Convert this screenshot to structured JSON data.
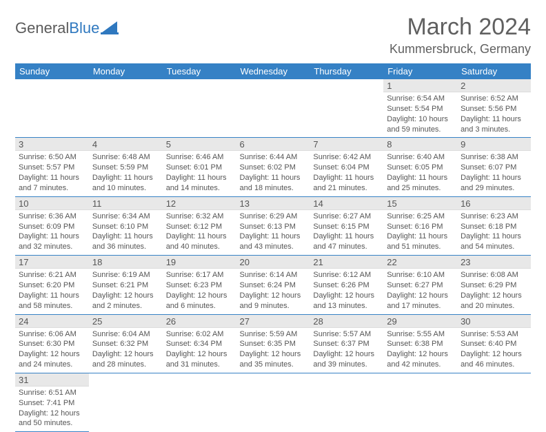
{
  "logo": {
    "word1": "General",
    "word2": "Blue"
  },
  "title": "March 2024",
  "location": "Kummersbruck, Germany",
  "colors": {
    "header_bg": "#3581c5",
    "header_fg": "#ffffff",
    "daynum_bg": "#e8e8e8",
    "row_border": "#3581c5",
    "text": "#555555",
    "logo_gray": "#5a5a5a",
    "logo_blue": "#2f78bf"
  },
  "weekdays": [
    "Sunday",
    "Monday",
    "Tuesday",
    "Wednesday",
    "Thursday",
    "Friday",
    "Saturday"
  ],
  "weeks": [
    [
      {
        "empty": true
      },
      {
        "empty": true
      },
      {
        "empty": true
      },
      {
        "empty": true
      },
      {
        "empty": true
      },
      {
        "n": "1",
        "rise": "Sunrise: 6:54 AM",
        "set": "Sunset: 5:54 PM",
        "day": "Daylight: 10 hours and 59 minutes."
      },
      {
        "n": "2",
        "rise": "Sunrise: 6:52 AM",
        "set": "Sunset: 5:56 PM",
        "day": "Daylight: 11 hours and 3 minutes."
      }
    ],
    [
      {
        "n": "3",
        "rise": "Sunrise: 6:50 AM",
        "set": "Sunset: 5:57 PM",
        "day": "Daylight: 11 hours and 7 minutes."
      },
      {
        "n": "4",
        "rise": "Sunrise: 6:48 AM",
        "set": "Sunset: 5:59 PM",
        "day": "Daylight: 11 hours and 10 minutes."
      },
      {
        "n": "5",
        "rise": "Sunrise: 6:46 AM",
        "set": "Sunset: 6:01 PM",
        "day": "Daylight: 11 hours and 14 minutes."
      },
      {
        "n": "6",
        "rise": "Sunrise: 6:44 AM",
        "set": "Sunset: 6:02 PM",
        "day": "Daylight: 11 hours and 18 minutes."
      },
      {
        "n": "7",
        "rise": "Sunrise: 6:42 AM",
        "set": "Sunset: 6:04 PM",
        "day": "Daylight: 11 hours and 21 minutes."
      },
      {
        "n": "8",
        "rise": "Sunrise: 6:40 AM",
        "set": "Sunset: 6:05 PM",
        "day": "Daylight: 11 hours and 25 minutes."
      },
      {
        "n": "9",
        "rise": "Sunrise: 6:38 AM",
        "set": "Sunset: 6:07 PM",
        "day": "Daylight: 11 hours and 29 minutes."
      }
    ],
    [
      {
        "n": "10",
        "rise": "Sunrise: 6:36 AM",
        "set": "Sunset: 6:09 PM",
        "day": "Daylight: 11 hours and 32 minutes."
      },
      {
        "n": "11",
        "rise": "Sunrise: 6:34 AM",
        "set": "Sunset: 6:10 PM",
        "day": "Daylight: 11 hours and 36 minutes."
      },
      {
        "n": "12",
        "rise": "Sunrise: 6:32 AM",
        "set": "Sunset: 6:12 PM",
        "day": "Daylight: 11 hours and 40 minutes."
      },
      {
        "n": "13",
        "rise": "Sunrise: 6:29 AM",
        "set": "Sunset: 6:13 PM",
        "day": "Daylight: 11 hours and 43 minutes."
      },
      {
        "n": "14",
        "rise": "Sunrise: 6:27 AM",
        "set": "Sunset: 6:15 PM",
        "day": "Daylight: 11 hours and 47 minutes."
      },
      {
        "n": "15",
        "rise": "Sunrise: 6:25 AM",
        "set": "Sunset: 6:16 PM",
        "day": "Daylight: 11 hours and 51 minutes."
      },
      {
        "n": "16",
        "rise": "Sunrise: 6:23 AM",
        "set": "Sunset: 6:18 PM",
        "day": "Daylight: 11 hours and 54 minutes."
      }
    ],
    [
      {
        "n": "17",
        "rise": "Sunrise: 6:21 AM",
        "set": "Sunset: 6:20 PM",
        "day": "Daylight: 11 hours and 58 minutes."
      },
      {
        "n": "18",
        "rise": "Sunrise: 6:19 AM",
        "set": "Sunset: 6:21 PM",
        "day": "Daylight: 12 hours and 2 minutes."
      },
      {
        "n": "19",
        "rise": "Sunrise: 6:17 AM",
        "set": "Sunset: 6:23 PM",
        "day": "Daylight: 12 hours and 6 minutes."
      },
      {
        "n": "20",
        "rise": "Sunrise: 6:14 AM",
        "set": "Sunset: 6:24 PM",
        "day": "Daylight: 12 hours and 9 minutes."
      },
      {
        "n": "21",
        "rise": "Sunrise: 6:12 AM",
        "set": "Sunset: 6:26 PM",
        "day": "Daylight: 12 hours and 13 minutes."
      },
      {
        "n": "22",
        "rise": "Sunrise: 6:10 AM",
        "set": "Sunset: 6:27 PM",
        "day": "Daylight: 12 hours and 17 minutes."
      },
      {
        "n": "23",
        "rise": "Sunrise: 6:08 AM",
        "set": "Sunset: 6:29 PM",
        "day": "Daylight: 12 hours and 20 minutes."
      }
    ],
    [
      {
        "n": "24",
        "rise": "Sunrise: 6:06 AM",
        "set": "Sunset: 6:30 PM",
        "day": "Daylight: 12 hours and 24 minutes."
      },
      {
        "n": "25",
        "rise": "Sunrise: 6:04 AM",
        "set": "Sunset: 6:32 PM",
        "day": "Daylight: 12 hours and 28 minutes."
      },
      {
        "n": "26",
        "rise": "Sunrise: 6:02 AM",
        "set": "Sunset: 6:34 PM",
        "day": "Daylight: 12 hours and 31 minutes."
      },
      {
        "n": "27",
        "rise": "Sunrise: 5:59 AM",
        "set": "Sunset: 6:35 PM",
        "day": "Daylight: 12 hours and 35 minutes."
      },
      {
        "n": "28",
        "rise": "Sunrise: 5:57 AM",
        "set": "Sunset: 6:37 PM",
        "day": "Daylight: 12 hours and 39 minutes."
      },
      {
        "n": "29",
        "rise": "Sunrise: 5:55 AM",
        "set": "Sunset: 6:38 PM",
        "day": "Daylight: 12 hours and 42 minutes."
      },
      {
        "n": "30",
        "rise": "Sunrise: 5:53 AM",
        "set": "Sunset: 6:40 PM",
        "day": "Daylight: 12 hours and 46 minutes."
      }
    ],
    [
      {
        "n": "31",
        "rise": "Sunrise: 6:51 AM",
        "set": "Sunset: 7:41 PM",
        "day": "Daylight: 12 hours and 50 minutes."
      },
      {
        "blank": true
      },
      {
        "blank": true
      },
      {
        "blank": true
      },
      {
        "blank": true
      },
      {
        "blank": true
      },
      {
        "blank": true
      }
    ]
  ]
}
